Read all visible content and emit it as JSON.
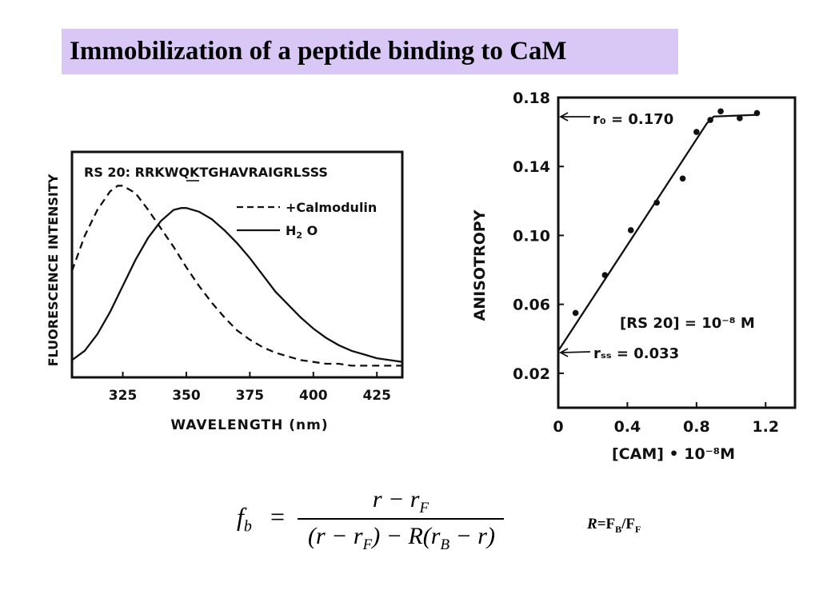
{
  "title": "Immobilization of a peptide binding to CaM",
  "chart_data": [
    {
      "type": "line",
      "annotation": "RS 20: RRKWQKTGHAVRAIGRLSSS",
      "xlabel": "WAVELENGTH (nm)",
      "ylabel": "FLUORESCENCE INTENSITY",
      "xlim": [
        305,
        435
      ],
      "x_ticks": [
        325,
        350,
        375,
        400,
        425
      ],
      "legend": [
        "+Calmodulin",
        "H2O"
      ],
      "legend_placement": "top-right",
      "series": [
        {
          "name": "+Calmodulin",
          "style": "dashed",
          "x": [
            305,
            310,
            315,
            320,
            323,
            325,
            330,
            335,
            340,
            345,
            350,
            355,
            360,
            365,
            370,
            375,
            380,
            385,
            390,
            395,
            400,
            405,
            410,
            415,
            420,
            425,
            430,
            435
          ],
          "y": [
            0.53,
            0.72,
            0.86,
            0.96,
            0.99,
            0.99,
            0.95,
            0.86,
            0.76,
            0.66,
            0.55,
            0.45,
            0.36,
            0.28,
            0.21,
            0.16,
            0.12,
            0.09,
            0.07,
            0.05,
            0.04,
            0.03,
            0.03,
            0.02,
            0.02,
            0.02,
            0.02,
            0.02
          ]
        },
        {
          "name": "H2O",
          "style": "solid",
          "x": [
            305,
            310,
            315,
            320,
            325,
            330,
            335,
            340,
            345,
            348,
            350,
            355,
            360,
            365,
            370,
            375,
            380,
            385,
            390,
            395,
            400,
            405,
            410,
            415,
            420,
            425,
            430,
            435
          ],
          "y": [
            0.05,
            0.1,
            0.19,
            0.31,
            0.45,
            0.59,
            0.71,
            0.8,
            0.86,
            0.87,
            0.87,
            0.85,
            0.81,
            0.75,
            0.68,
            0.6,
            0.51,
            0.42,
            0.35,
            0.28,
            0.22,
            0.17,
            0.13,
            0.1,
            0.08,
            0.06,
            0.05,
            0.04
          ]
        }
      ]
    },
    {
      "type": "scatter",
      "xlabel": "[CAM] • 10⁻⁸M",
      "ylabel": "ANISOTROPY",
      "xlim": [
        0,
        1.37
      ],
      "ylim": [
        0,
        0.18
      ],
      "x_ticks": [
        "0",
        "0.4",
        "0.8",
        "1.2"
      ],
      "y_ticks": [
        "0.02",
        "0.06",
        "0.10",
        "0.14",
        "0.18"
      ],
      "x_tick_values": [
        0,
        0.4,
        0.8,
        1.2
      ],
      "y_tick_values": [
        0.02,
        0.06,
        0.1,
        0.14,
        0.18
      ],
      "points": {
        "x": [
          0.1,
          0.27,
          0.42,
          0.57,
          0.72,
          0.8,
          0.88,
          0.94,
          1.05,
          1.15
        ],
        "y": [
          0.055,
          0.077,
          0.103,
          0.119,
          0.133,
          0.16,
          0.167,
          0.172,
          0.168,
          0.171
        ]
      },
      "fit_line": {
        "x": [
          0,
          0.86,
          0.9,
          1.15
        ],
        "y": [
          0.033,
          0.165,
          0.169,
          0.17
        ]
      },
      "annotations": {
        "r0": "r₀ = 0.170",
        "rss": "rₛₛ = 0.033",
        "concentration": "[RS 20] = 10⁻⁸ M"
      }
    }
  ],
  "formula": {
    "lhs_symbol": "f",
    "lhs_sub": "b",
    "equals": "=",
    "num_a": "r − r",
    "num_sub": "F",
    "den_a": "(r − r",
    "den_sub1": "F",
    "den_b": ") − R(r",
    "den_sub2": "B",
    "den_c": " − r)"
  },
  "ratio": {
    "r": "R",
    "eq": "=F",
    "sub1": "B",
    "slash": "/F",
    "sub2": "F"
  }
}
